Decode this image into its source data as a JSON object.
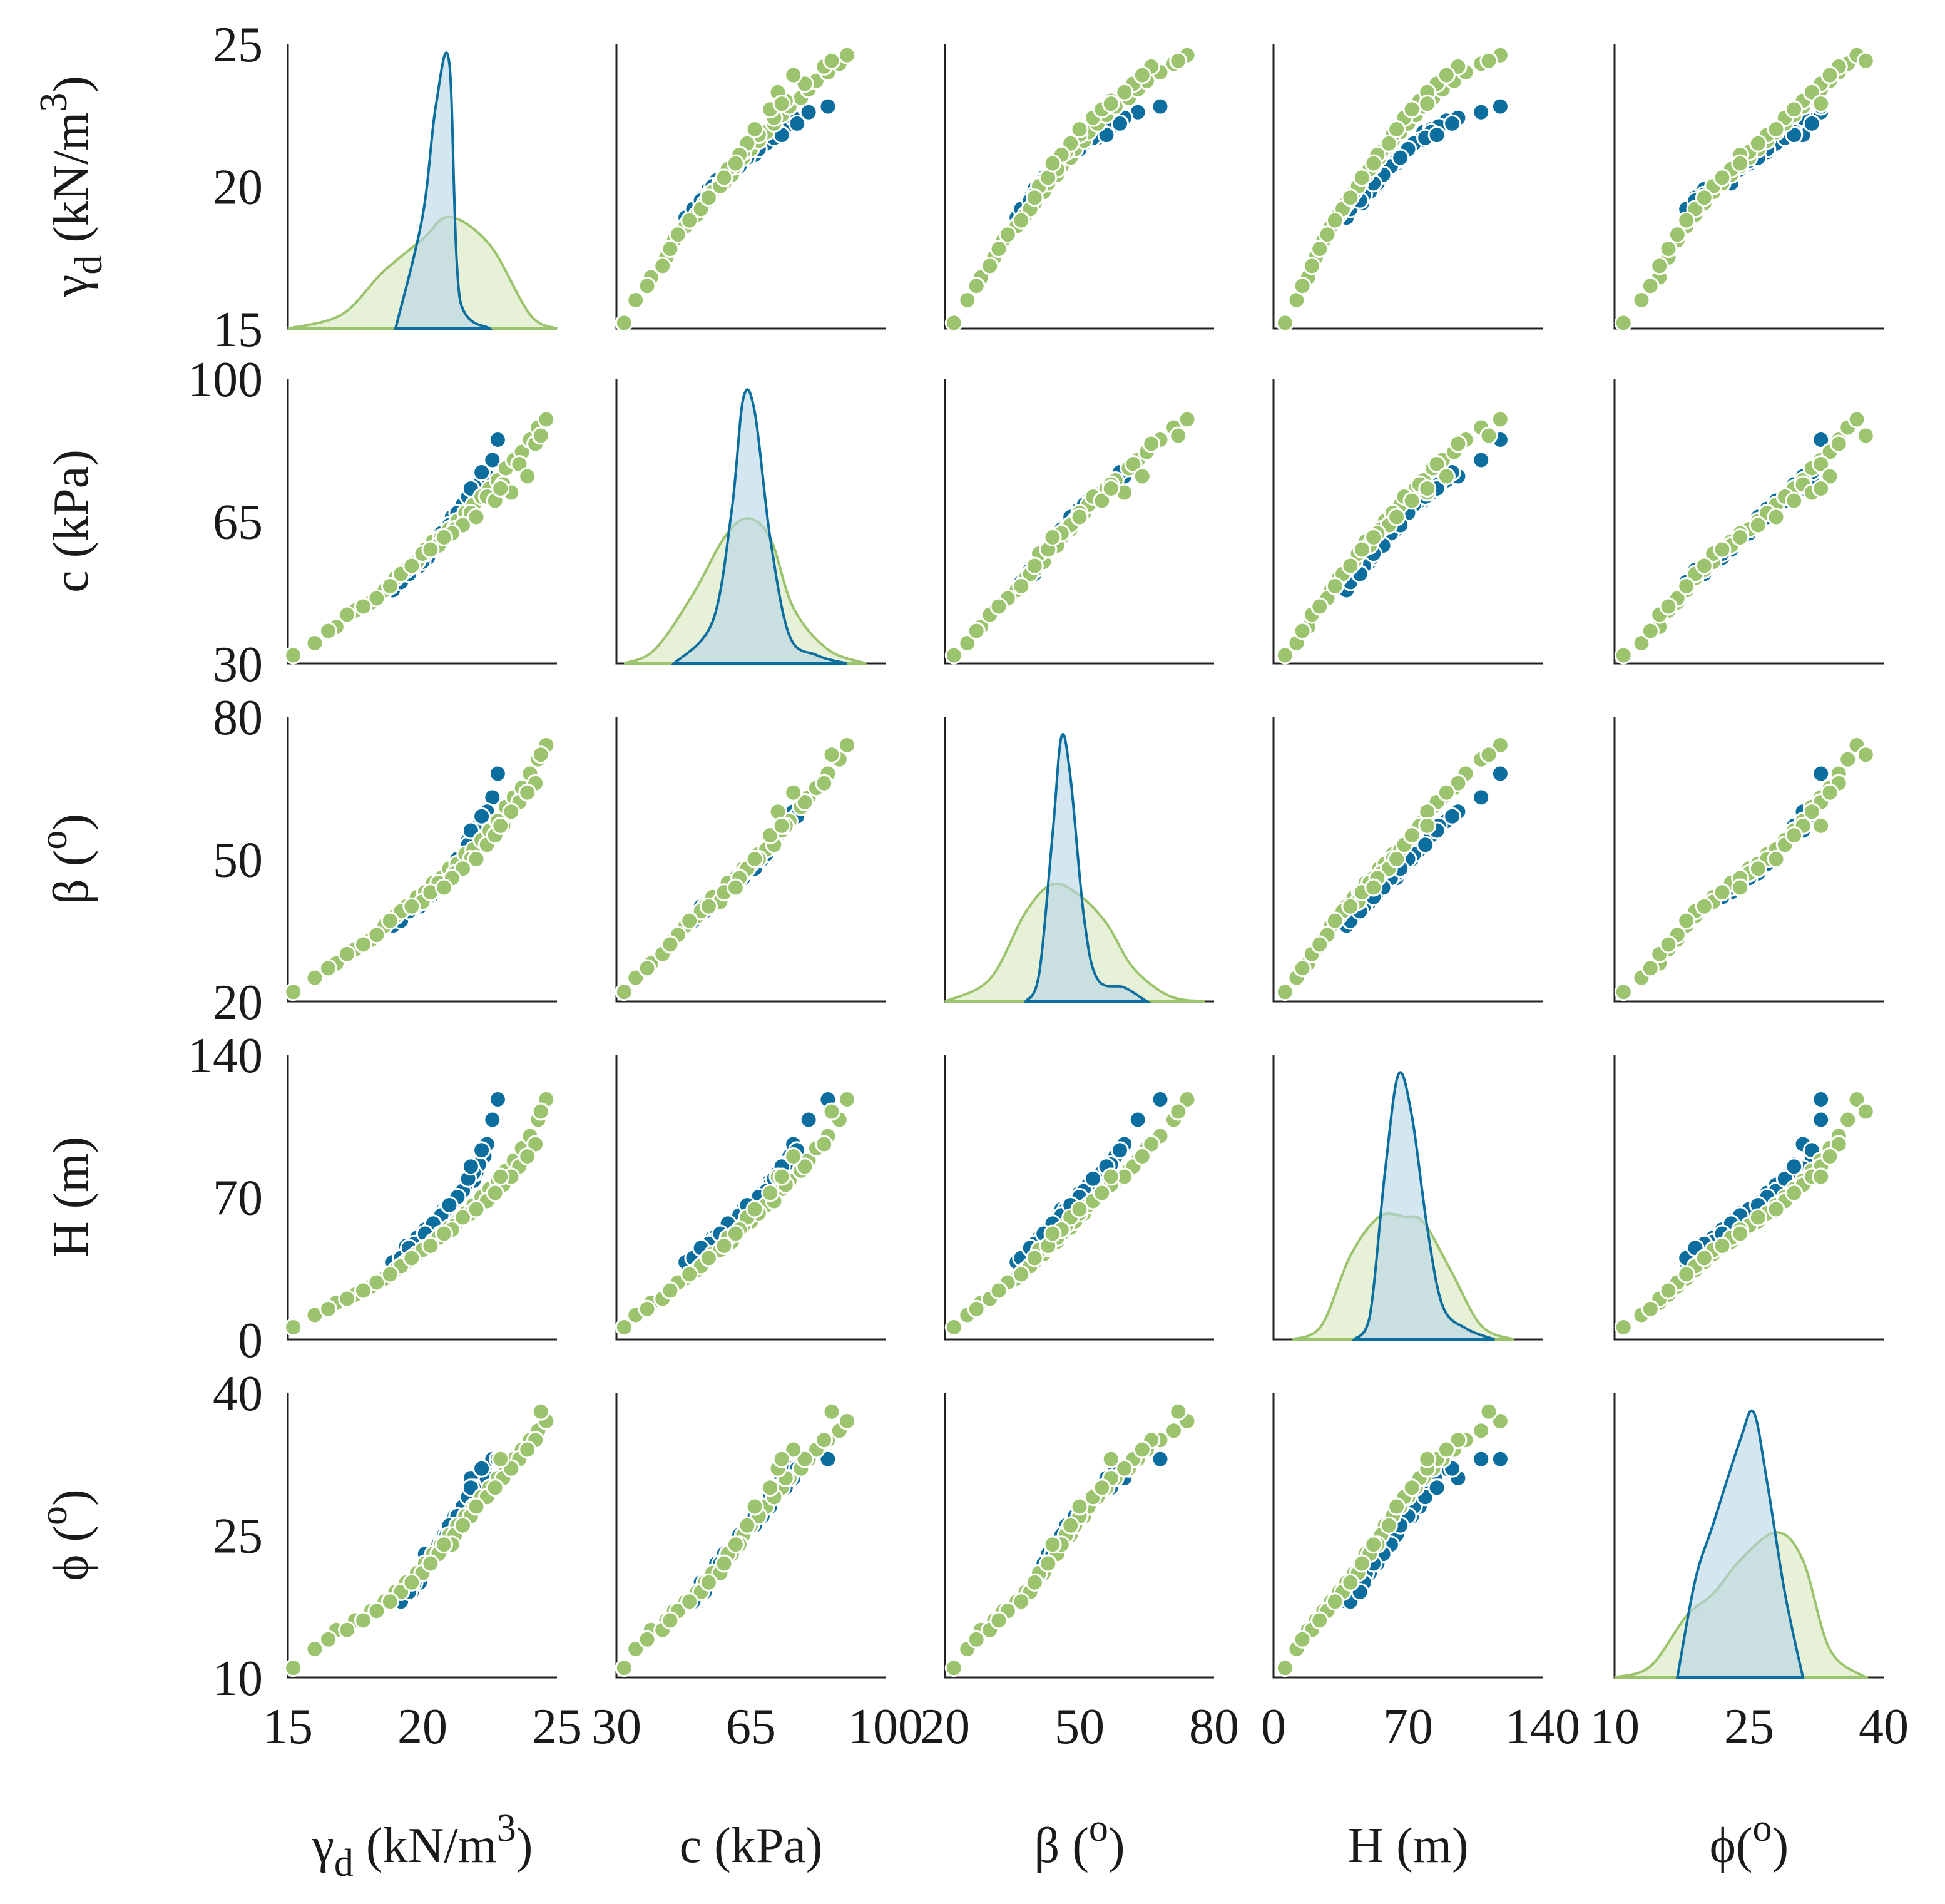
{
  "chart_data": {
    "type": "scatter",
    "subtype": "pairplot-matrix-with-kde-diagonal",
    "grid": false,
    "legend": "none",
    "colors": {
      "series_a": "#0b6e9e",
      "series_a_fill": "#b8d6e6",
      "series_b": "#9cc46e",
      "series_b_fill": "#dfeccb",
      "axis": "#222222"
    },
    "variables": [
      {
        "key": "gd",
        "label_main": "γ",
        "label_sub": "d",
        "label_rest": " (kN/m",
        "label_sup": "3",
        "label_end": ")",
        "range": [
          15,
          25
        ],
        "ticks": [
          15,
          20,
          25
        ]
      },
      {
        "key": "c",
        "label_main": "c (kPa)",
        "label_sub": "",
        "label_rest": "",
        "label_sup": "",
        "label_end": "",
        "range": [
          30,
          100
        ],
        "ticks": [
          30,
          65,
          100
        ]
      },
      {
        "key": "beta",
        "label_main": "β (",
        "label_sub": "",
        "label_rest": "",
        "label_sup": "o",
        "label_end": ")",
        "range": [
          20,
          80
        ],
        "ticks": [
          20,
          50,
          80
        ]
      },
      {
        "key": "H",
        "label_main": "H (m)",
        "label_sub": "",
        "label_rest": "",
        "label_sup": "",
        "label_end": "",
        "range": [
          0,
          140
        ],
        "ticks": [
          0,
          70,
          140
        ]
      },
      {
        "key": "phi",
        "label_main": "ϕ(",
        "label_sub": "",
        "label_rest": "",
        "label_sup": "o",
        "label_end": ")",
        "range": [
          10,
          40
        ],
        "ticks": [
          10,
          25,
          40
        ]
      }
    ],
    "y_label_overrides": {
      "phi": {
        "label_main": "ϕ (",
        "label_sup": "o",
        "label_end": ")"
      }
    },
    "kde": [
      {
        "var": "gd",
        "a": [
          0.0,
          0.4,
          0.8,
          0.95,
          0.1,
          0.0
        ],
        "a_x": [
          19,
          20,
          20.5,
          21,
          21.4,
          22.5
        ],
        "b_x": [
          15,
          17,
          18.5,
          20,
          21,
          22.5,
          24,
          25
        ],
        "b": [
          0.0,
          0.05,
          0.2,
          0.32,
          0.4,
          0.3,
          0.05,
          0.0
        ]
      },
      {
        "var": "c",
        "a_x": [
          45,
          55,
          60,
          63,
          66,
          70,
          75,
          82,
          90
        ],
        "a": [
          0.0,
          0.15,
          0.55,
          0.95,
          0.9,
          0.45,
          0.1,
          0.03,
          0.0
        ],
        "b_x": [
          32,
          40,
          50,
          58,
          64,
          70,
          76,
          85,
          95
        ],
        "b": [
          0.0,
          0.05,
          0.25,
          0.45,
          0.52,
          0.45,
          0.2,
          0.05,
          0.0
        ]
      },
      {
        "var": "beta",
        "a_x": [
          38,
          41,
          44,
          46,
          48,
          51,
          54,
          60,
          65
        ],
        "a": [
          0.0,
          0.1,
          0.6,
          0.95,
          0.8,
          0.3,
          0.08,
          0.05,
          0.0
        ],
        "b_x": [
          20,
          30,
          38,
          44,
          50,
          56,
          62,
          70,
          78
        ],
        "b": [
          0.0,
          0.08,
          0.32,
          0.42,
          0.38,
          0.28,
          0.12,
          0.02,
          0.0
        ]
      },
      {
        "var": "H",
        "a_x": [
          42,
          50,
          58,
          65,
          72,
          80,
          88,
          100,
          115
        ],
        "a": [
          0.0,
          0.08,
          0.6,
          0.95,
          0.8,
          0.4,
          0.12,
          0.04,
          0.0
        ],
        "b_x": [
          10,
          25,
          40,
          55,
          68,
          78,
          92,
          108,
          125
        ],
        "b": [
          0.0,
          0.05,
          0.3,
          0.44,
          0.44,
          0.42,
          0.25,
          0.05,
          0.0
        ]
      },
      {
        "var": "phi",
        "a_x": [
          17,
          19,
          21,
          24,
          25.5,
          27,
          29,
          31
        ],
        "a": [
          0.0,
          0.35,
          0.55,
          0.85,
          0.95,
          0.7,
          0.3,
          0.0
        ],
        "b_x": [
          10,
          14,
          18,
          21,
          24,
          28,
          31,
          34,
          38
        ],
        "b": [
          0.0,
          0.04,
          0.22,
          0.3,
          0.42,
          0.52,
          0.42,
          0.1,
          0.0
        ]
      }
    ],
    "samples": {
      "a": {
        "gd": [
          20.8,
          21.2,
          20.1,
          21.9,
          19.4,
          20.6,
          21.5,
          22.0,
          20.3,
          21.1,
          19.8,
          20.9,
          21.7,
          20.4,
          21.3,
          22.3,
          19.6,
          20.7,
          21.0,
          21.8,
          20.2,
          21.4,
          22.6,
          19.9,
          20.5,
          21.6,
          20.0,
          21.2,
          22.1,
          20.8,
          18.9,
          21.5,
          20.6,
          21.9,
          19.7,
          22.8,
          20.3,
          21.1,
          20.9,
          21.3,
          19.2,
          20.7,
          22.4,
          21.0,
          20.4,
          21.7,
          19.5,
          20.1,
          21.8,
          22.2
        ],
        "c": [
          62,
          66,
          58,
          70,
          52,
          61,
          68,
          72,
          57,
          65,
          55,
          63,
          71,
          59,
          67,
          75,
          53,
          62,
          64,
          73,
          56,
          68,
          80,
          54,
          60,
          70,
          55,
          65,
          74,
          63,
          48,
          69,
          61,
          72,
          54,
          85,
          58,
          66,
          63,
          67,
          50,
          62,
          76,
          64,
          59,
          71,
          52,
          57,
          73,
          77
        ],
        "beta": [
          46,
          49,
          43,
          53,
          40,
          45,
          51,
          55,
          42,
          48,
          41,
          47,
          54,
          44,
          50,
          58,
          39,
          46,
          47,
          56,
          42,
          50,
          63,
          40,
          44,
          52,
          41,
          48,
          57,
          46,
          36,
          51,
          45,
          55,
          40,
          68,
          43,
          48,
          47,
          50,
          37,
          46,
          60,
          48,
          44,
          53,
          39,
          42,
          56,
          59
        ],
        "H": [
          62,
          68,
          54,
          78,
          46,
          60,
          72,
          82,
          52,
          66,
          50,
          64,
          80,
          56,
          70,
          90,
          44,
          62,
          65,
          84,
          51,
          72,
          108,
          47,
          58,
          76,
          48,
          67,
          86,
          64,
          38,
          73,
          59,
          82,
          47,
          118,
          54,
          67,
          64,
          70,
          40,
          61,
          96,
          66,
          57,
          79,
          45,
          52,
          85,
          93
        ],
        "phi": [
          25,
          27,
          23,
          29,
          20,
          24,
          28,
          30,
          22,
          26,
          21,
          25,
          29,
          23,
          27,
          32,
          19,
          24,
          26,
          31,
          22,
          27,
          33,
          20,
          23,
          28,
          21,
          26,
          30,
          25,
          18,
          28,
          24,
          30,
          20,
          33,
          22,
          26,
          25,
          27,
          18,
          24,
          31,
          26,
          23,
          29,
          19,
          22,
          30,
          32
        ]
      },
      "b": {
        "gd": [
          15.2,
          16.0,
          16.8,
          17.5,
          18.1,
          18.6,
          19.0,
          19.4,
          19.8,
          20.1,
          20.4,
          20.7,
          21.0,
          21.3,
          21.6,
          21.9,
          22.2,
          22.5,
          22.8,
          23.1,
          23.4,
          23.7,
          24.0,
          24.3,
          24.6,
          18.3,
          19.2,
          20.0,
          20.6,
          21.2,
          21.8,
          22.4,
          23.0,
          23.6,
          24.2,
          17.2,
          18.8,
          20.3,
          21.5,
          22.7,
          23.9,
          16.5,
          19.6,
          21.1,
          22.0,
          23.3,
          24.4,
          17.8,
          20.8,
          22.9
        ],
        "c": [
          32,
          35,
          39,
          43,
          45,
          48,
          51,
          53,
          55,
          58,
          60,
          61,
          63,
          65,
          67,
          69,
          71,
          73,
          75,
          78,
          80,
          82,
          85,
          88,
          90,
          46,
          52,
          57,
          59,
          63,
          67,
          71,
          74,
          79,
          84,
          42,
          49,
          58,
          64,
          70,
          76,
          38,
          54,
          62,
          66,
          72,
          86,
          44,
          61,
          73
        ],
        "beta": [
          22,
          25,
          28,
          31,
          33,
          36,
          38,
          40,
          42,
          43,
          45,
          46,
          48,
          49,
          51,
          52,
          54,
          56,
          58,
          61,
          63,
          65,
          68,
          71,
          74,
          34,
          39,
          41,
          45,
          47,
          50,
          53,
          57,
          62,
          66,
          30,
          37,
          43,
          48,
          55,
          64,
          27,
          40,
          46,
          50,
          60,
          72,
          32,
          44,
          57
        ],
        "H": [
          6,
          12,
          18,
          22,
          26,
          30,
          34,
          38,
          42,
          45,
          48,
          52,
          55,
          58,
          62,
          66,
          70,
          74,
          78,
          83,
          88,
          94,
          100,
          108,
          118,
          28,
          36,
          44,
          50,
          56,
          62,
          68,
          76,
          85,
          96,
          20,
          32,
          46,
          60,
          72,
          90,
          15,
          40,
          54,
          64,
          80,
          112,
          24,
          52,
          80
        ],
        "phi": [
          11,
          13,
          15,
          16,
          17,
          18,
          19,
          20,
          21,
          22,
          23,
          24,
          25,
          26,
          27,
          28,
          29,
          30,
          31,
          32,
          33,
          34,
          35,
          36,
          37,
          17,
          19,
          21,
          23,
          25,
          27,
          29,
          31,
          33,
          35,
          15,
          18,
          22,
          26,
          30,
          34,
          14,
          20,
          24,
          28,
          32,
          38,
          16,
          24,
          33
        ]
      }
    }
  }
}
